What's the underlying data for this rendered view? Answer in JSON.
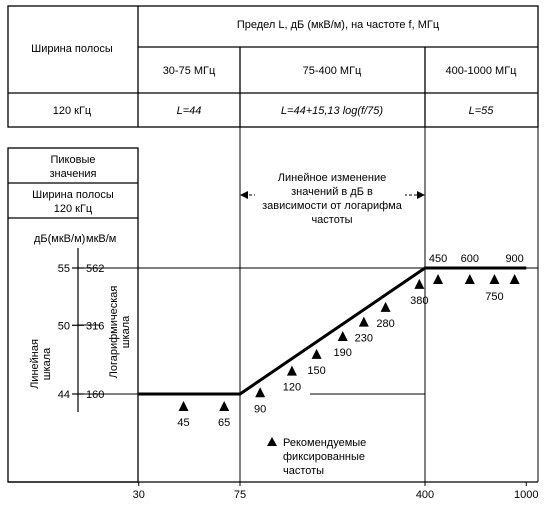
{
  "table": {
    "header": "Предел L, дБ (мкВ/м), на частоте f, МГц",
    "bandwidth_label": "Ширина полосы",
    "ranges": [
      "30-75 МГц",
      "75-400 МГц",
      "400-1000 МГц"
    ],
    "row_bandwidth": "120 кГц",
    "limits": [
      "L=44",
      "L=44+15,13 log(f/75)",
      "L=55"
    ]
  },
  "left_panel": {
    "peak_label_1": "Пиковые",
    "peak_label_2": "значения",
    "bw_label_1": "Ширина полосы",
    "bw_label_2": "120 кГц",
    "unit_db": "дБ(мкВ/м)",
    "unit_uv": "мкВ/м",
    "linear_scale_1": "Линейная",
    "linear_scale_2": "шкала",
    "log_scale_1": "Логарифмическая",
    "log_scale_2": "шкала",
    "db_ticks": [
      "55",
      "50",
      "44"
    ],
    "uv_ticks": [
      "562",
      "316",
      "160"
    ]
  },
  "annotation": [
    "Линейное изменение",
    "значений в дБ в",
    "зависимости от логарифма",
    "частоты"
  ],
  "legend": [
    "Рекомендуемые",
    "фиксированные",
    "частоты"
  ],
  "chart_data": {
    "type": "line",
    "x_scale": "log",
    "x_ticks": [
      30,
      75,
      400,
      1000
    ],
    "x_tick_labels": [
      "30",
      "75",
      "400",
      "1000"
    ],
    "y_ticks": [
      44,
      50,
      55
    ],
    "xlim": [
      30,
      1000
    ],
    "series": [
      {
        "points": [
          [
            30,
            44
          ],
          [
            75,
            44
          ],
          [
            400,
            55
          ],
          [
            1000,
            55
          ]
        ]
      }
    ],
    "fixed_frequencies": [
      {
        "f": 45,
        "label": "45"
      },
      {
        "f": 65,
        "label": "65"
      },
      {
        "f": 90,
        "label": "90"
      },
      {
        "f": 120,
        "label": "120"
      },
      {
        "f": 150,
        "label": "150"
      },
      {
        "f": 190,
        "label": "190"
      },
      {
        "f": 230,
        "label": "230"
      },
      {
        "f": 280,
        "label": "280"
      },
      {
        "f": 380,
        "label": "380"
      },
      {
        "f": 450,
        "label": "450"
      },
      {
        "f": 600,
        "label": "600"
      },
      {
        "f": 750,
        "label": "750"
      },
      {
        "f": 900,
        "label": "900"
      }
    ]
  }
}
